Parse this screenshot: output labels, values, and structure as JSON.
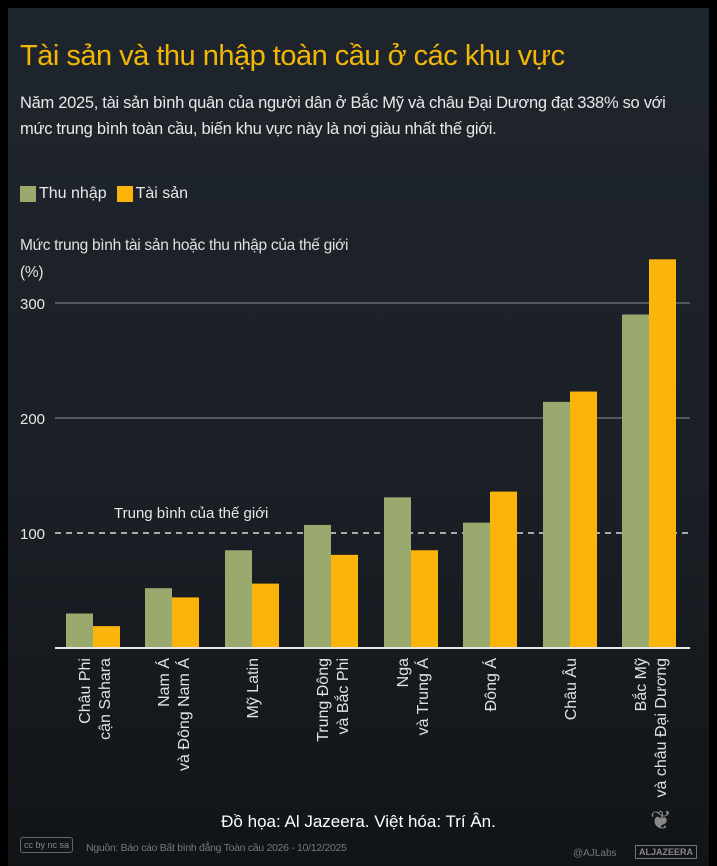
{
  "title": "Tài sản và thu nhập toàn cầu ở các khu vực",
  "subtitle": "Năm 2025, tài sản bình quân của người dân ở Bắc Mỹ và châu Đại Dương đạt 338% so với mức trung bình toàn cầu, biến khu vực này là nơi giàu nhất thế giới.",
  "credit": "Đồ họa: Al Jazeera. Việt hóa: Trí Ân.",
  "source": "Nguồn: Báo cáo Bất bình đẳng Toàn cầu 2026 - 10/12/2025",
  "license": "cc by nc sa",
  "handle": "@AJLabs",
  "brand": "ALJAZEERA",
  "chart_data": {
    "type": "bar",
    "title": "Tài sản và thu nhập toàn cầu ở các khu vực",
    "ylabel": "Mức trung bình tài sản hoặc thu nhập của thế giới",
    "ylabel_unit": "(%)",
    "xlabel": "",
    "ylim": [
      0,
      340
    ],
    "yticks": [
      100,
      200,
      300
    ],
    "grid": true,
    "legend_position": "top-left",
    "categories": [
      [
        "Châu Phi",
        "cận Sahara"
      ],
      [
        "Nam Á",
        "và Đông Nam Á"
      ],
      [
        "Mỹ Latin"
      ],
      [
        "Trung Đông",
        "và Bắc Phi"
      ],
      [
        "Nga",
        "và Trung Á"
      ],
      [
        "Đông Á"
      ],
      [
        "Châu Âu"
      ],
      [
        "Bắc Mỹ",
        "và châu Đại Dương"
      ]
    ],
    "series": [
      {
        "name": "Thu nhập",
        "color": "#9aaa6e",
        "values": [
          30,
          52,
          85,
          107,
          131,
          109,
          214,
          290
        ]
      },
      {
        "name": "Tài sản",
        "color": "#fbb40a",
        "values": [
          19,
          44,
          56,
          81,
          85,
          136,
          223,
          338
        ]
      }
    ],
    "reference_line": {
      "value": 100,
      "label": "Trung bình của thế giới"
    }
  }
}
